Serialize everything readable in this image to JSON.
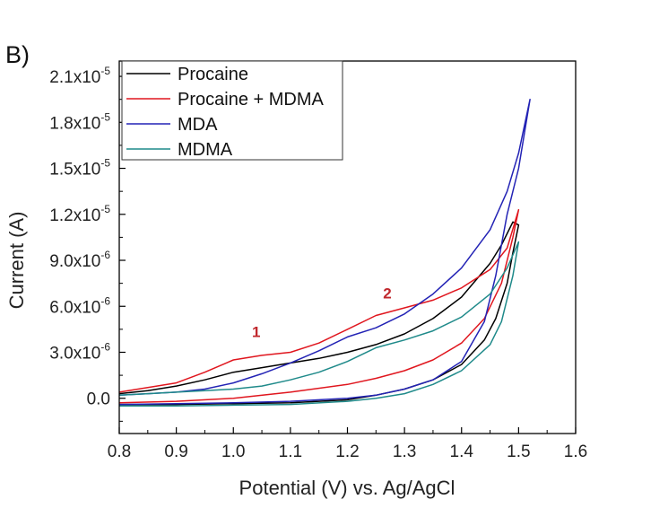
{
  "panel_label": "B)",
  "chart_data": {
    "type": "line",
    "xlabel": "Potential (V) vs. Ag/AgCl",
    "ylabel": "Current (A)",
    "xlim": [
      0.8,
      1.6
    ],
    "ylim": [
      -2.3e-06,
      2.2e-05
    ],
    "x_ticks": [
      {
        "value": 0.8,
        "label": "0.8"
      },
      {
        "value": 0.9,
        "label": "0.9"
      },
      {
        "value": 1.0,
        "label": "1.0"
      },
      {
        "value": 1.1,
        "label": "1.1"
      },
      {
        "value": 1.2,
        "label": "1.2"
      },
      {
        "value": 1.3,
        "label": "1.3"
      },
      {
        "value": 1.4,
        "label": "1.4"
      },
      {
        "value": 1.5,
        "label": "1.5"
      },
      {
        "value": 1.6,
        "label": "1.6"
      }
    ],
    "y_ticks": [
      {
        "value": 0,
        "mantissa": "0.0",
        "exp": ""
      },
      {
        "value": 3e-06,
        "mantissa": "3.0x10",
        "exp": "-6"
      },
      {
        "value": 6e-06,
        "mantissa": "6.0x10",
        "exp": "-6"
      },
      {
        "value": 9e-06,
        "mantissa": "9.0x10",
        "exp": "-6"
      },
      {
        "value": 1.2e-05,
        "mantissa": "1.2x10",
        "exp": "-5"
      },
      {
        "value": 1.5e-05,
        "mantissa": "1.5x10",
        "exp": "-5"
      },
      {
        "value": 1.8e-05,
        "mantissa": "1.8x10",
        "exp": "-5"
      },
      {
        "value": 2.1e-05,
        "mantissa": "2.1x10",
        "exp": "-5"
      }
    ],
    "legend_position": "top-left",
    "grid": false,
    "series": [
      {
        "name": "Procaine",
        "color": "#000000",
        "x": [
          0.8,
          0.85,
          0.9,
          0.95,
          1.0,
          1.05,
          1.1,
          1.15,
          1.2,
          1.25,
          1.3,
          1.35,
          1.4,
          1.45,
          1.47,
          1.49,
          1.5,
          1.49,
          1.48,
          1.46,
          1.44,
          1.4,
          1.35,
          1.3,
          1.25,
          1.2,
          1.1,
          1.0,
          0.9,
          0.8
        ],
        "y": [
          3e-07,
          5e-07,
          8e-07,
          1.2e-06,
          1.7e-06,
          2e-06,
          2.3e-06,
          2.6e-06,
          3e-06,
          3.5e-06,
          4.2e-06,
          5.2e-06,
          6.6e-06,
          8.8e-06,
          1e-05,
          1.15e-05,
          1.13e-05,
          9.5e-06,
          7.5e-06,
          5.2e-06,
          3.8e-06,
          2.2e-06,
          1.2e-06,
          6e-07,
          2e-07,
          -1e-07,
          -3e-07,
          -3.5e-07,
          -4e-07,
          -4e-07
        ]
      },
      {
        "name": "Procaine + MDMA",
        "color": "#e0161e",
        "x": [
          0.8,
          0.85,
          0.9,
          0.95,
          1.0,
          1.05,
          1.1,
          1.15,
          1.2,
          1.25,
          1.3,
          1.35,
          1.4,
          1.45,
          1.48,
          1.5,
          1.49,
          1.47,
          1.44,
          1.4,
          1.35,
          1.3,
          1.25,
          1.2,
          1.1,
          1.0,
          0.9,
          0.8
        ],
        "y": [
          4e-07,
          7e-07,
          1e-06,
          1.7e-06,
          2.5e-06,
          2.8e-06,
          3e-06,
          3.6e-06,
          4.5e-06,
          5.4e-06,
          5.9e-06,
          6.4e-06,
          7.2e-06,
          8.4e-06,
          9.8e-06,
          1.23e-05,
          1.05e-05,
          7.5e-06,
          5.2e-06,
          3.6e-06,
          2.5e-06,
          1.8e-06,
          1.3e-06,
          9e-07,
          4e-07,
          0.0,
          -2e-07,
          -3e-07
        ]
      },
      {
        "name": "MDA",
        "color": "#2323b5",
        "x": [
          0.8,
          0.85,
          0.9,
          0.95,
          1.0,
          1.05,
          1.1,
          1.15,
          1.2,
          1.25,
          1.3,
          1.35,
          1.4,
          1.45,
          1.48,
          1.5,
          1.52,
          1.5,
          1.48,
          1.46,
          1.44,
          1.4,
          1.35,
          1.3,
          1.25,
          1.2,
          1.1,
          1.0,
          0.9,
          0.8
        ],
        "y": [
          2e-07,
          3e-07,
          4e-07,
          6e-07,
          1e-06,
          1.6e-06,
          2.3e-06,
          3.1e-06,
          4e-06,
          4.6e-06,
          5.5e-06,
          6.8e-06,
          8.5e-06,
          1.1e-05,
          1.35e-05,
          1.6e-05,
          1.95e-05,
          1.5e-05,
          1.2e-05,
          8e-06,
          5e-06,
          2.4e-06,
          1.2e-06,
          6e-07,
          2e-07,
          0.0,
          -2e-07,
          -3e-07,
          -3.5e-07,
          -4e-07
        ]
      },
      {
        "name": "MDMA",
        "color": "#1f8a8a",
        "x": [
          0.8,
          0.85,
          0.9,
          0.95,
          1.0,
          1.05,
          1.1,
          1.15,
          1.2,
          1.25,
          1.3,
          1.35,
          1.4,
          1.45,
          1.48,
          1.5,
          1.49,
          1.47,
          1.45,
          1.4,
          1.35,
          1.3,
          1.25,
          1.2,
          1.1,
          1.0,
          0.9,
          0.8
        ],
        "y": [
          2e-07,
          3e-07,
          4e-07,
          5e-07,
          6e-07,
          8e-07,
          1.2e-06,
          1.7e-06,
          2.4e-06,
          3.3e-06,
          3.8e-06,
          4.4e-06,
          5.3e-06,
          6.8e-06,
          8.5e-06,
          1.02e-05,
          8e-06,
          5e-06,
          3.5e-06,
          1.8e-06,
          9e-07,
          3e-07,
          0.0,
          -2e-07,
          -4e-07,
          -4.5e-07,
          -5e-07,
          -5e-07
        ]
      }
    ],
    "annotations": [
      {
        "text": "1",
        "x": 1.04,
        "y": 4e-06,
        "color": "#c0282d"
      },
      {
        "text": "2",
        "x": 1.27,
        "y": 6.5e-06,
        "color": "#c0282d"
      }
    ]
  }
}
